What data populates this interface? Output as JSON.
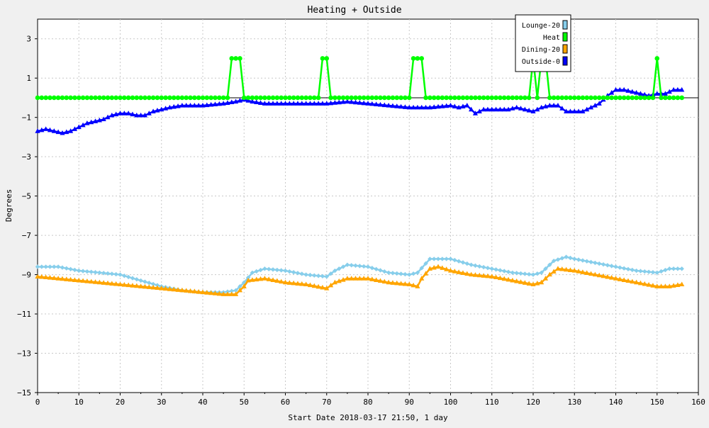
{
  "chart_data": {
    "type": "line",
    "title": "Heating + Outside",
    "xlabel": "Start Date 2018-03-17 21:50, 1 day",
    "ylabel": "Degrees",
    "xlim": [
      0,
      160
    ],
    "ylim": [
      -15,
      4
    ],
    "xticks": [
      0,
      10,
      20,
      30,
      40,
      50,
      60,
      70,
      80,
      90,
      100,
      110,
      120,
      130,
      140,
      150,
      160
    ],
    "yticks": [
      3,
      1,
      -1,
      -3,
      -5,
      -7,
      -9,
      -11,
      -13,
      -15
    ],
    "grid": true,
    "legend_position": "top-right",
    "reference_line_y": 0,
    "series": [
      {
        "name": "Lounge-20",
        "color": "#87ceeb",
        "marker": "diamond",
        "points": [
          [
            0,
            -8.6
          ],
          [
            5,
            -8.6
          ],
          [
            10,
            -8.8
          ],
          [
            15,
            -8.9
          ],
          [
            20,
            -9.0
          ],
          [
            25,
            -9.3
          ],
          [
            30,
            -9.6
          ],
          [
            35,
            -9.8
          ],
          [
            40,
            -9.9
          ],
          [
            45,
            -9.9
          ],
          [
            48,
            -9.8
          ],
          [
            50,
            -9.4
          ],
          [
            52,
            -8.9
          ],
          [
            55,
            -8.7
          ],
          [
            60,
            -8.8
          ],
          [
            65,
            -9.0
          ],
          [
            70,
            -9.1
          ],
          [
            72,
            -8.8
          ],
          [
            75,
            -8.5
          ],
          [
            80,
            -8.6
          ],
          [
            85,
            -8.9
          ],
          [
            90,
            -9.0
          ],
          [
            92,
            -8.9
          ],
          [
            95,
            -8.2
          ],
          [
            100,
            -8.2
          ],
          [
            105,
            -8.5
          ],
          [
            110,
            -8.7
          ],
          [
            115,
            -8.9
          ],
          [
            120,
            -9.0
          ],
          [
            122,
            -8.9
          ],
          [
            125,
            -8.3
          ],
          [
            128,
            -8.1
          ],
          [
            130,
            -8.2
          ],
          [
            135,
            -8.4
          ],
          [
            140,
            -8.6
          ],
          [
            145,
            -8.8
          ],
          [
            150,
            -8.9
          ],
          [
            153,
            -8.7
          ],
          [
            156,
            -8.7
          ]
        ]
      },
      {
        "name": "Heat",
        "color": "#00ff00",
        "marker": "circle",
        "points": [
          [
            0,
            0
          ],
          [
            46,
            0
          ],
          [
            47,
            2
          ],
          [
            49,
            2
          ],
          [
            50,
            0
          ],
          [
            68,
            0
          ],
          [
            69,
            2
          ],
          [
            70,
            2
          ],
          [
            71,
            0
          ],
          [
            90,
            0
          ],
          [
            91,
            2
          ],
          [
            93,
            2
          ],
          [
            94,
            0
          ],
          [
            119,
            0
          ],
          [
            120,
            2
          ],
          [
            121,
            0
          ],
          [
            122,
            2
          ],
          [
            123,
            2
          ],
          [
            124,
            0
          ],
          [
            149,
            0
          ],
          [
            150,
            2
          ],
          [
            151,
            0
          ],
          [
            156,
            0
          ]
        ]
      },
      {
        "name": "Dining-20",
        "color": "#ffa500",
        "marker": "triangle",
        "points": [
          [
            0,
            -9.1
          ],
          [
            10,
            -9.3
          ],
          [
            20,
            -9.5
          ],
          [
            30,
            -9.7
          ],
          [
            40,
            -9.9
          ],
          [
            45,
            -10.0
          ],
          [
            48,
            -10.0
          ],
          [
            50,
            -9.6
          ],
          [
            51,
            -9.3
          ],
          [
            55,
            -9.2
          ],
          [
            60,
            -9.4
          ],
          [
            65,
            -9.5
          ],
          [
            70,
            -9.7
          ],
          [
            72,
            -9.4
          ],
          [
            75,
            -9.2
          ],
          [
            80,
            -9.2
          ],
          [
            85,
            -9.4
          ],
          [
            90,
            -9.5
          ],
          [
            92,
            -9.6
          ],
          [
            93,
            -9.2
          ],
          [
            95,
            -8.7
          ],
          [
            97,
            -8.6
          ],
          [
            100,
            -8.8
          ],
          [
            105,
            -9.0
          ],
          [
            110,
            -9.1
          ],
          [
            115,
            -9.3
          ],
          [
            120,
            -9.5
          ],
          [
            122,
            -9.4
          ],
          [
            124,
            -9.0
          ],
          [
            126,
            -8.7
          ],
          [
            130,
            -8.8
          ],
          [
            135,
            -9.0
          ],
          [
            140,
            -9.2
          ],
          [
            145,
            -9.4
          ],
          [
            150,
            -9.6
          ],
          [
            153,
            -9.6
          ],
          [
            156,
            -9.5
          ]
        ]
      },
      {
        "name": "Outside-0",
        "color": "#0000ff",
        "marker": "triangle",
        "points": [
          [
            0,
            -1.7
          ],
          [
            2,
            -1.6
          ],
          [
            4,
            -1.7
          ],
          [
            6,
            -1.8
          ],
          [
            8,
            -1.7
          ],
          [
            10,
            -1.5
          ],
          [
            12,
            -1.3
          ],
          [
            14,
            -1.2
          ],
          [
            16,
            -1.1
          ],
          [
            18,
            -0.9
          ],
          [
            20,
            -0.8
          ],
          [
            22,
            -0.8
          ],
          [
            24,
            -0.9
          ],
          [
            26,
            -0.9
          ],
          [
            28,
            -0.7
          ],
          [
            30,
            -0.6
          ],
          [
            32,
            -0.5
          ],
          [
            35,
            -0.4
          ],
          [
            40,
            -0.4
          ],
          [
            45,
            -0.3
          ],
          [
            48,
            -0.2
          ],
          [
            50,
            -0.1
          ],
          [
            52,
            -0.2
          ],
          [
            55,
            -0.3
          ],
          [
            60,
            -0.3
          ],
          [
            65,
            -0.3
          ],
          [
            70,
            -0.3
          ],
          [
            75,
            -0.2
          ],
          [
            80,
            -0.3
          ],
          [
            85,
            -0.4
          ],
          [
            90,
            -0.5
          ],
          [
            92,
            -0.5
          ],
          [
            95,
            -0.5
          ],
          [
            100,
            -0.4
          ],
          [
            102,
            -0.5
          ],
          [
            104,
            -0.4
          ],
          [
            106,
            -0.8
          ],
          [
            108,
            -0.6
          ],
          [
            110,
            -0.6
          ],
          [
            114,
            -0.6
          ],
          [
            116,
            -0.5
          ],
          [
            118,
            -0.6
          ],
          [
            120,
            -0.7
          ],
          [
            122,
            -0.5
          ],
          [
            124,
            -0.4
          ],
          [
            126,
            -0.4
          ],
          [
            128,
            -0.7
          ],
          [
            130,
            -0.7
          ],
          [
            132,
            -0.7
          ],
          [
            134,
            -0.5
          ],
          [
            136,
            -0.3
          ],
          [
            138,
            0.1
          ],
          [
            140,
            0.4
          ],
          [
            142,
            0.4
          ],
          [
            144,
            0.3
          ],
          [
            146,
            0.2
          ],
          [
            148,
            0.1
          ],
          [
            150,
            0.2
          ],
          [
            152,
            0.2
          ],
          [
            154,
            0.4
          ],
          [
            156,
            0.4
          ]
        ]
      }
    ]
  }
}
